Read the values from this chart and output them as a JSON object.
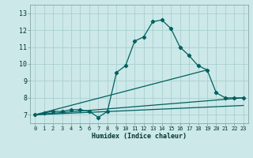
{
  "xlabel": "Humidex (Indice chaleur)",
  "background_color": "#cce8e8",
  "grid_color": "#aacfcf",
  "line_color": "#006060",
  "xlim": [
    -0.5,
    23.5
  ],
  "ylim": [
    6.5,
    13.5
  ],
  "xticks": [
    0,
    1,
    2,
    3,
    4,
    5,
    6,
    7,
    8,
    9,
    10,
    11,
    12,
    13,
    14,
    15,
    16,
    17,
    18,
    19,
    20,
    21,
    22,
    23
  ],
  "yticks": [
    7,
    8,
    9,
    10,
    11,
    12,
    13
  ],
  "series1_x": [
    0,
    1,
    2,
    3,
    4,
    5,
    6,
    7,
    8,
    9,
    10,
    11,
    12,
    13,
    14,
    15,
    16,
    17,
    18,
    19,
    20,
    21,
    22,
    23
  ],
  "series1_y": [
    7.0,
    7.1,
    7.2,
    7.2,
    7.3,
    7.3,
    7.2,
    6.85,
    7.2,
    9.5,
    9.9,
    11.35,
    11.6,
    12.5,
    12.6,
    12.1,
    11.0,
    10.5,
    9.9,
    9.65,
    8.3,
    8.0,
    8.0,
    8.0
  ],
  "series2_x": [
    0,
    23
  ],
  "series2_y": [
    7.0,
    8.0
  ],
  "series3_x": [
    0,
    19
  ],
  "series3_y": [
    7.0,
    9.65
  ],
  "series4_x": [
    0,
    23
  ],
  "series4_y": [
    7.0,
    7.55
  ]
}
